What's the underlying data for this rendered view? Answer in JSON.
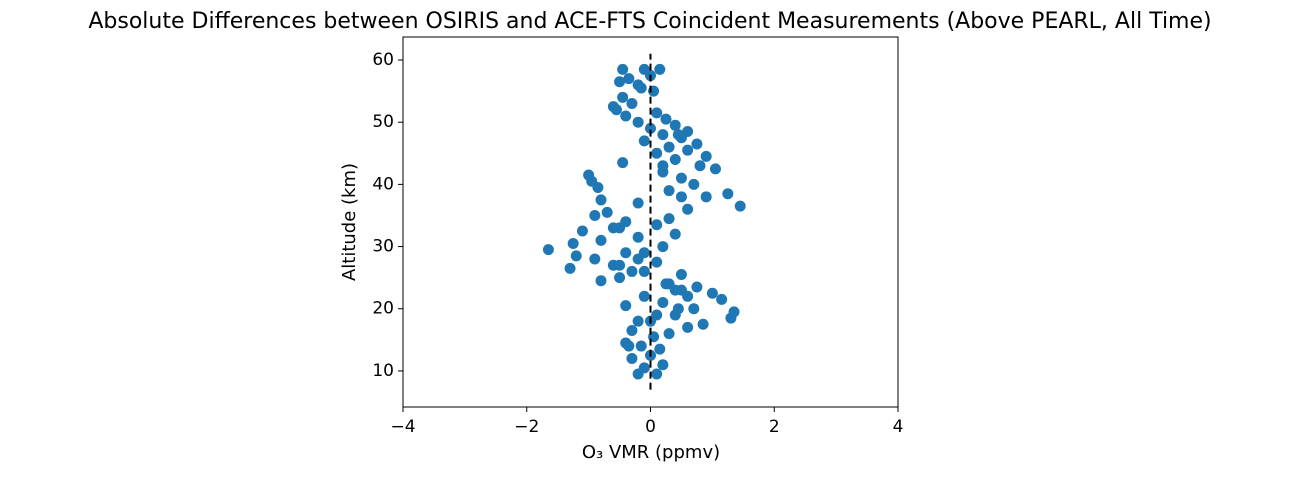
{
  "chart_data": {
    "type": "scatter",
    "title": "Absolute Differences between OSIRIS and ACE-FTS Coincident Measurements (Above PEARL, All Time)",
    "x_label": "O₃ VMR (ppmv)",
    "y_label": "Altitude (km)",
    "color": "#1f77b4",
    "x": [
      -0.2,
      0.1,
      -0.1,
      0.2,
      -0.3,
      0.0,
      0.15,
      -0.35,
      -0.4,
      0.05,
      0.3,
      -0.3,
      0.6,
      0.85,
      -0.2,
      1.3,
      0.4,
      1.35,
      0.7,
      -0.4,
      0.2,
      1.15,
      -0.1,
      1.0,
      0.5,
      0.75,
      0.3,
      -0.8,
      -0.5,
      0.5,
      -0.3,
      -1.3,
      -0.6,
      0.1,
      -0.9,
      -1.2,
      -0.4,
      -1.65,
      0.2,
      -1.25,
      -0.8,
      -0.2,
      0.4,
      -1.1,
      -0.6,
      0.1,
      -0.4,
      0.3,
      -0.9,
      -0.7,
      0.6,
      1.45,
      -0.2,
      -0.8,
      0.9,
      1.25,
      0.3,
      -0.85,
      0.7,
      -0.95,
      0.5,
      -1.0,
      0.2,
      1.05,
      0.8,
      -0.45,
      0.4,
      0.9,
      0.1,
      0.6,
      0.3,
      0.75,
      -0.1,
      0.5,
      0.2,
      0.6,
      0.0,
      0.4,
      -0.2,
      0.25,
      -0.4,
      0.1,
      -0.55,
      -0.6,
      -0.3,
      -0.45,
      0.05,
      -0.2,
      -0.35,
      -0.1,
      -0.45,
      0.15,
      0.0,
      -0.5,
      -0.15,
      -0.1,
      -0.2,
      -0.5,
      0.4,
      0.1,
      0.6,
      0.0,
      0.25,
      0.45,
      -0.1,
      -0.5,
      0.5,
      0.2,
      0.45,
      -0.15
    ],
    "values": [
      9.5,
      9.5,
      10.5,
      11,
      12,
      12.5,
      13.5,
      14,
      14.5,
      15.5,
      16,
      16.5,
      17,
      17.5,
      18,
      18.5,
      19,
      19.5,
      20,
      20.5,
      21,
      21.5,
      22,
      22.5,
      23,
      23.5,
      24,
      24.5,
      25,
      25.5,
      26,
      26.5,
      27,
      27.5,
      28,
      28.5,
      29,
      29.5,
      30,
      30.5,
      31,
      31.5,
      32,
      32.5,
      33,
      33.5,
      34,
      34.5,
      35,
      35.5,
      36,
      36.5,
      37,
      37.5,
      38,
      38.5,
      39,
      39.5,
      40,
      40.5,
      41,
      41.5,
      42,
      42.5,
      43,
      43.5,
      44,
      44.5,
      45,
      45.5,
      46,
      46.5,
      47,
      47.5,
      48,
      48.5,
      49,
      49.5,
      50,
      50.5,
      51,
      51.5,
      52,
      52.5,
      53,
      54,
      55,
      56,
      57,
      58.5,
      58.5,
      58.5,
      57.5,
      56.5,
      55.5,
      29,
      28,
      27,
      23,
      19,
      22,
      18,
      24,
      20,
      26,
      33,
      38,
      43,
      48,
      14
    ],
    "xlim": [
      -4,
      4
    ],
    "xticks": [
      {
        "value": -4,
        "label": "−4"
      },
      {
        "value": -2,
        "label": "−2"
      },
      0,
      2,
      4
    ],
    "ylim": [
      4.2,
      63.7
    ],
    "yticks": [
      10,
      20,
      30,
      40,
      50,
      60
    ],
    "reference_line": {
      "x": 0,
      "y_from": 7,
      "y_to": 61,
      "color": "#000000",
      "style": "dashed"
    }
  }
}
